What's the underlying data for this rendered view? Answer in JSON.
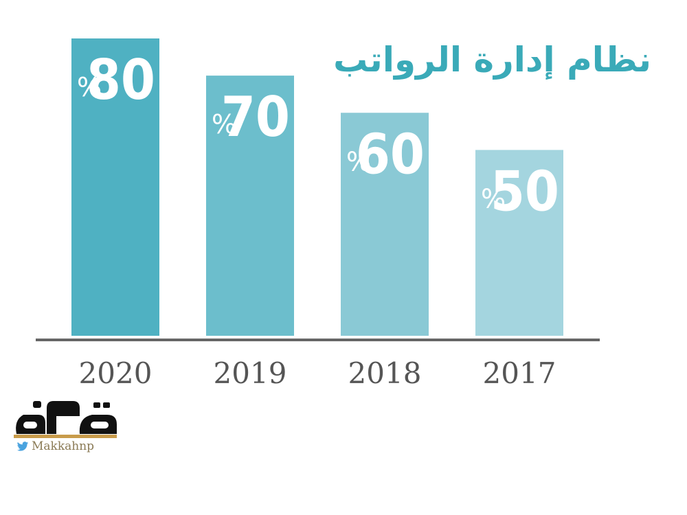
{
  "chart_data": {
    "type": "bar",
    "title": "نظام إدارة الرواتب",
    "categories": [
      "2020",
      "2019",
      "2018",
      "2017"
    ],
    "values": [
      80,
      70,
      60,
      50
    ],
    "value_suffix": "%",
    "ylim": [
      0,
      80
    ],
    "grid": false,
    "colors": [
      "#4fb1c2",
      "#6cbecc",
      "#8ac9d5",
      "#a4d5df"
    ],
    "axis_color": "#666666"
  },
  "brand": {
    "logo_text": "مكة",
    "handle": "Makkahnp",
    "twitter_icon": "twitter-bird-icon"
  }
}
